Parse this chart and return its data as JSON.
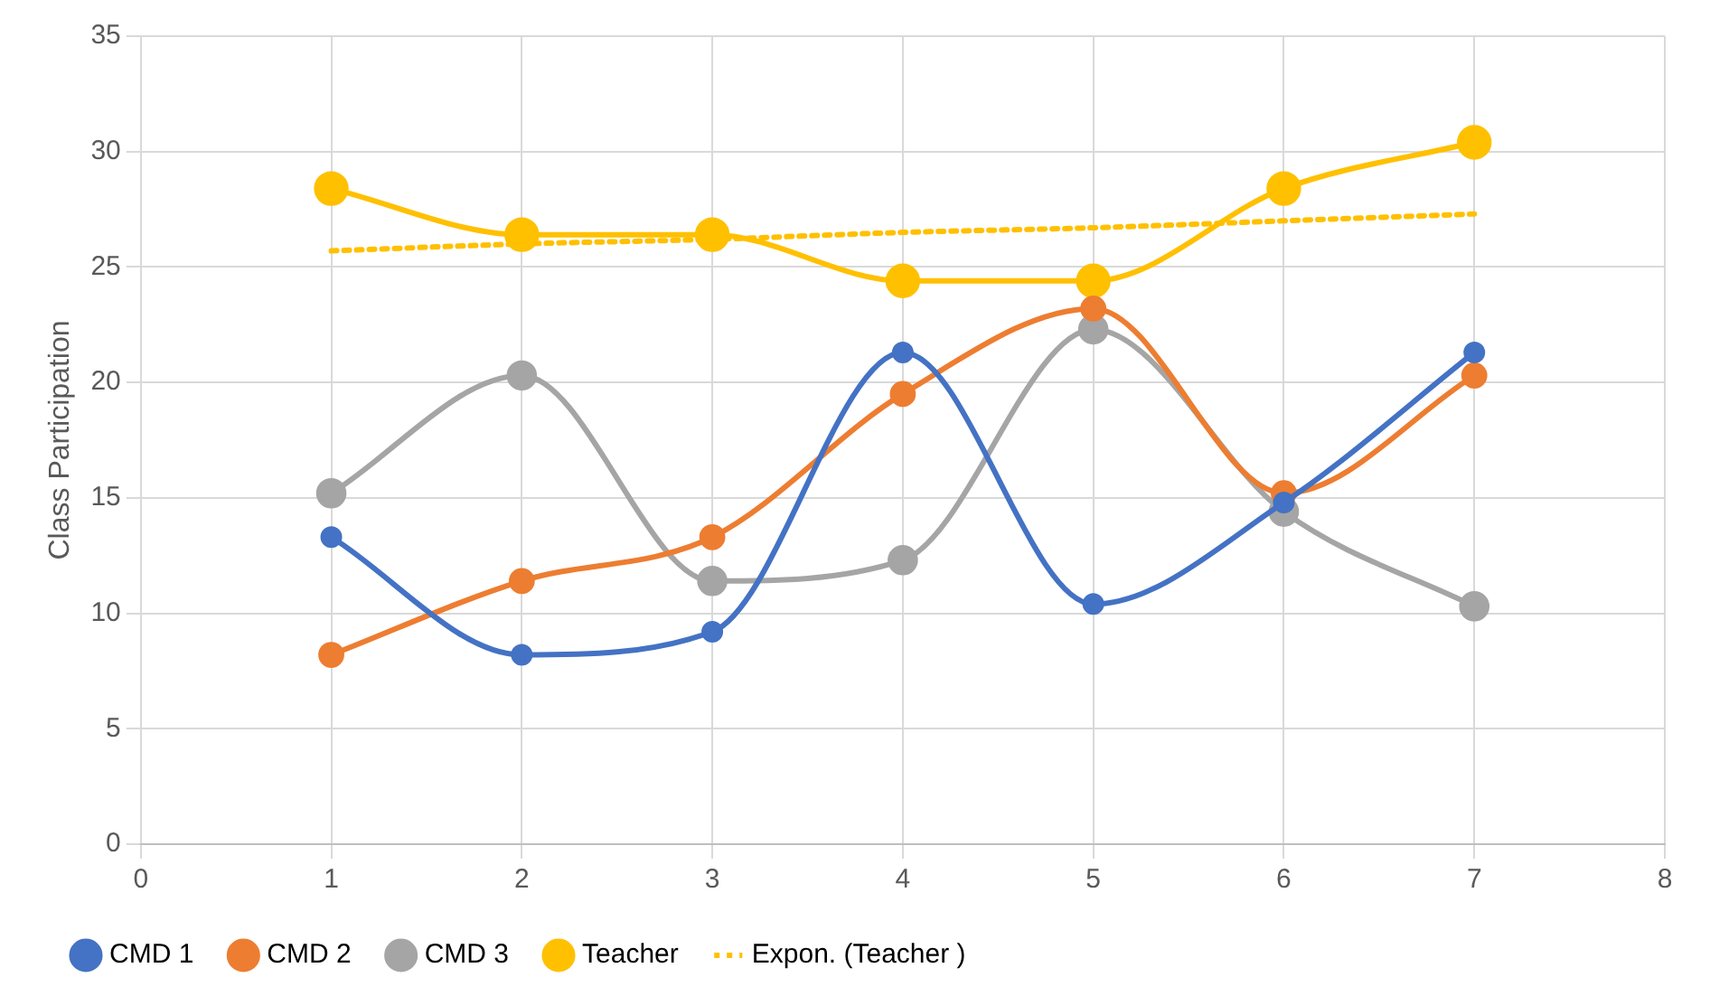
{
  "chart_data": {
    "type": "line",
    "ylabel": "Class Participation",
    "xlim": [
      0,
      8
    ],
    "xticks": [
      0,
      1,
      2,
      3,
      4,
      5,
      6,
      7,
      8
    ],
    "ylim": [
      0,
      35
    ],
    "yticks": [
      0,
      5,
      10,
      15,
      20,
      25,
      30,
      35
    ],
    "grid": true,
    "legend": "bottom",
    "marker": "circle",
    "line_style": "solid",
    "x": [
      1,
      2,
      3,
      4,
      5,
      6,
      7
    ],
    "series": [
      {
        "name": "CMD 1",
        "color": "#4472c4",
        "values": [
          13.3,
          8.2,
          9.2,
          21.3,
          10.4,
          14.8,
          21.3
        ]
      },
      {
        "name": "CMD 2",
        "color": "#ed7d31",
        "values": [
          8.2,
          11.4,
          13.3,
          19.5,
          23.2,
          15.2,
          20.3
        ]
      },
      {
        "name": "CMD 3",
        "color": "#a5a5a5",
        "values": [
          15.2,
          20.3,
          11.4,
          12.3,
          22.3,
          14.4,
          10.3
        ]
      },
      {
        "name": "Teacher",
        "color": "#ffc000",
        "values": [
          28.4,
          26.4,
          26.4,
          24.4,
          24.4,
          28.4,
          30.4
        ]
      },
      {
        "name": "Expon. (Teacher )",
        "color": "#ffc000",
        "marker": "none",
        "line_style": "dotted",
        "values": [
          25.7,
          26.0,
          26.2,
          26.5,
          26.7,
          27.0,
          27.3
        ]
      }
    ]
  }
}
